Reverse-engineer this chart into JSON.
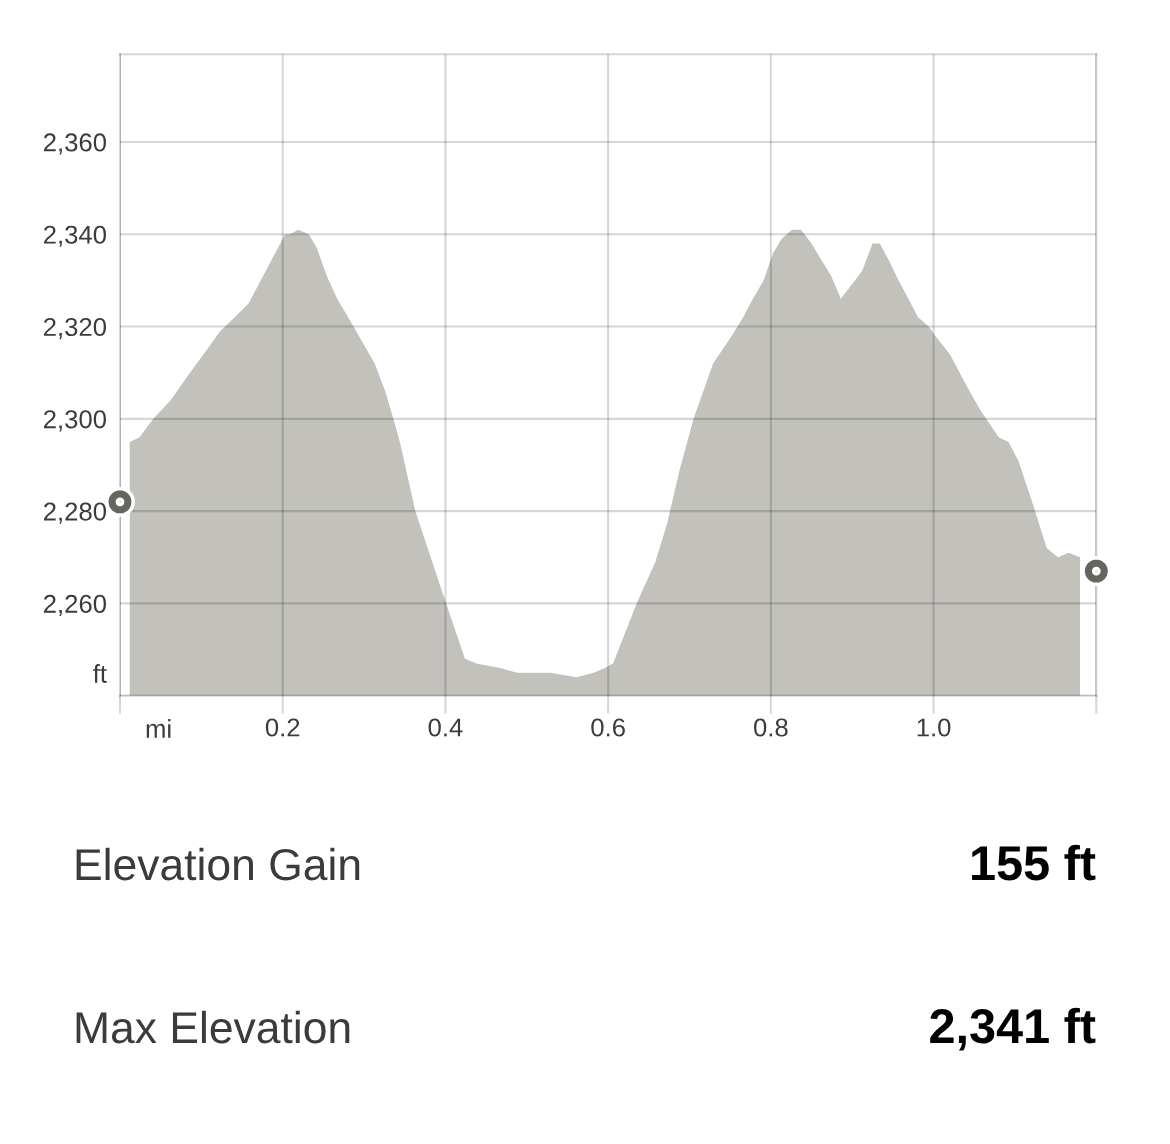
{
  "chart_data": {
    "type": "area",
    "xlabel": "mi",
    "ylabel": "ft",
    "xlim": [
      0,
      1.2
    ],
    "xticks": [
      {
        "value": 0,
        "label": null
      },
      0.2,
      0.4,
      0.6,
      0.8,
      {
        "value": 1.0,
        "label": "1.0"
      },
      {
        "value": 1.2,
        "label": null
      }
    ],
    "ylim": [
      2240,
      2379
    ],
    "yticks": [
      {
        "value": 2240,
        "label": null
      },
      {
        "value": 2260,
        "label": "2,260"
      },
      {
        "value": 2280,
        "label": "2,280"
      },
      {
        "value": 2300,
        "label": "2,300"
      },
      {
        "value": 2320,
        "label": "2,320"
      },
      {
        "value": 2340,
        "label": "2,340"
      },
      {
        "value": 2360,
        "label": "2,360"
      }
    ],
    "grid": true,
    "annotations": [
      "Elevation Gain",
      "155 ft",
      "Max Elevation",
      "2,341 ft"
    ],
    "series": [
      {
        "color": "#c2c1bc",
        "x": [
          0.012,
          0.024,
          0.041,
          0.062,
          0.086,
          0.107,
          0.123,
          0.141,
          0.158,
          0.176,
          0.203,
          0.209,
          0.219,
          0.232,
          0.242,
          0.254,
          0.267,
          0.287,
          0.313,
          0.326,
          0.336,
          0.344,
          0.363,
          0.397,
          0.424,
          0.438,
          0.467,
          0.488,
          0.508,
          0.529,
          0.561,
          0.582,
          0.596,
          0.606,
          0.615,
          0.635,
          0.658,
          0.672,
          0.688,
          0.705,
          0.729,
          0.752,
          0.766,
          0.778,
          0.791,
          0.803,
          0.813,
          0.826,
          0.837,
          0.85,
          0.86,
          0.874,
          0.886,
          0.899,
          0.912,
          0.925,
          0.934,
          0.946,
          0.957,
          0.969,
          0.981,
          0.994,
          1.002,
          1.02,
          1.041,
          1.057,
          1.08,
          1.092,
          1.104,
          1.123,
          1.139,
          1.153,
          1.166,
          1.18
        ],
        "values": [
          2295,
          2296,
          2300,
          2304,
          2310,
          2315,
          2319,
          2322,
          2325,
          2331,
          2340,
          2340,
          2341,
          2340,
          2337,
          2331,
          2326,
          2320,
          2312,
          2306,
          2300,
          2295,
          2280,
          2262,
          2248,
          2247,
          2246,
          2245,
          2245,
          2245,
          2244,
          2245,
          2246,
          2247,
          2251,
          2260,
          2269,
          2277,
          2289,
          2300,
          2312,
          2318,
          2322,
          2326,
          2330,
          2336,
          2339,
          2341,
          2341,
          2338,
          2335,
          2331,
          2326,
          2329,
          2332,
          2338,
          2338,
          2334,
          2330,
          2326,
          2322,
          2320,
          2318,
          2314,
          2307,
          2302,
          2296,
          2295,
          2291,
          2281,
          2272,
          2270,
          2271,
          2270
        ]
      },
      {
        "type": "scatter",
        "color": "#66645f",
        "marker": "circle",
        "x": [
          0,
          1.2
        ],
        "values": [
          2282,
          2267
        ]
      }
    ]
  }
}
